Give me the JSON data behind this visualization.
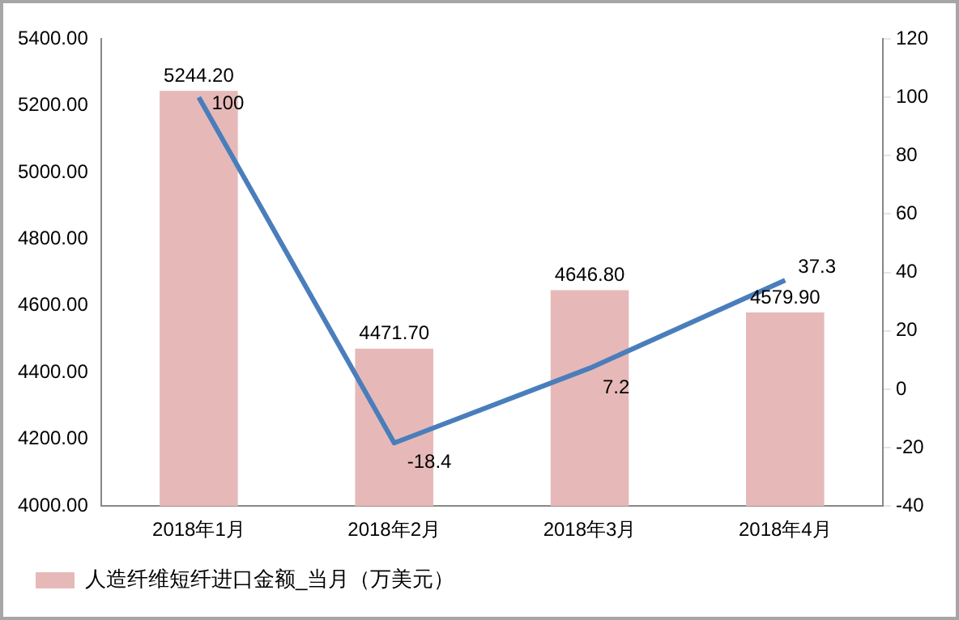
{
  "chart_data": {
    "type": "bar",
    "categories": [
      "2018年1月",
      "2018年2月",
      "2018年3月",
      "2018年4月"
    ],
    "series": [
      {
        "name": "人造纤维短纤进口金额_当月（万美元）",
        "color": "#e6b9b8",
        "values": [
          5244.2,
          4471.7,
          4646.8,
          4579.9
        ],
        "value_labels": [
          "5244.20",
          "4471.70",
          "4646.80",
          "4579.90"
        ]
      },
      {
        "type": "line",
        "axis": "y2",
        "color": "#4a7ebb",
        "values": [
          100,
          -18.4,
          7.2,
          37.3
        ],
        "value_labels": [
          "100",
          "-18.4",
          "7.2",
          "37.3"
        ]
      }
    ],
    "ylim": [
      4000,
      5400
    ],
    "yticks": [
      {
        "value": 4000,
        "label": "4000.00"
      },
      {
        "value": 4200,
        "label": "4200.00"
      },
      {
        "value": 4400,
        "label": "4400.00"
      },
      {
        "value": 4600,
        "label": "4600.00"
      },
      {
        "value": 4800,
        "label": "4800.00"
      },
      {
        "value": 5000,
        "label": "5000.00"
      },
      {
        "value": 5200,
        "label": "5200.00"
      },
      {
        "value": 5400,
        "label": "5400.00"
      }
    ],
    "y2lim": [
      -40,
      120
    ],
    "y2ticks": [
      -40,
      -20,
      0,
      20,
      40,
      60,
      80,
      100,
      120
    ],
    "grid": false,
    "legend": "bottom left",
    "marker": "none",
    "line_style": "solid"
  }
}
